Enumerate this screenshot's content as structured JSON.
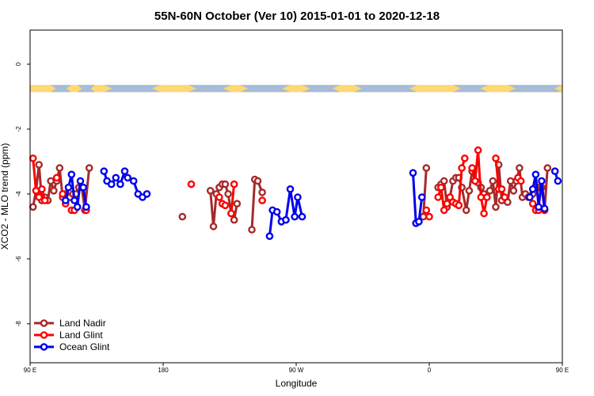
{
  "chart_data": {
    "type": "line",
    "title": "55N-60N October (Ver 10)   2015-01-01 to 2020-12-18",
    "xlabel": "Longitude",
    "ylabel": "XCO2 - MLO trend (ppm)",
    "xlim": [
      90,
      450
    ],
    "ylim": [
      -9.2,
      1.05
    ],
    "x_ticks": [
      {
        "value": 90,
        "label": "90 E"
      },
      {
        "value": 180,
        "label": "180"
      },
      {
        "value": 270,
        "label": "90 W"
      },
      {
        "value": 360,
        "label": "0"
      },
      {
        "value": 450,
        "label": "90 E"
      },
      {
        "value": 540,
        "label": "180"
      }
    ],
    "y_ticks": [
      {
        "value": 0,
        "label": "0"
      },
      {
        "value": -2,
        "label": "-2"
      },
      {
        "value": -4,
        "label": "-4"
      },
      {
        "value": -6,
        "label": "-6"
      },
      {
        "value": -8,
        "label": "-8"
      }
    ],
    "land_ocean_band": {
      "y_top": -0.64,
      "y_bottom": -0.86,
      "land_color": "#ffd873",
      "ocean_color": "#a7bcd9"
    },
    "legend": {
      "position": "bottom-left"
    },
    "series": [
      {
        "name": "Land Nadir",
        "color": "#a52a2a",
        "segments": [
          [
            [
              92,
              -4.4
            ],
            [
              94,
              -3.9
            ],
            [
              96,
              -3.1
            ],
            [
              98,
              -4.2
            ],
            [
              100,
              -4.1
            ],
            [
              102,
              -4.2
            ],
            [
              104,
              -3.6
            ],
            [
              106,
              -3.9
            ],
            [
              108,
              -3.6
            ],
            [
              110,
              -3.2
            ],
            [
              112,
              -4.1
            ],
            [
              114,
              -4.0
            ],
            [
              117,
              -4.1
            ],
            [
              119,
              -4.0
            ],
            [
              121,
              -4.0
            ],
            [
              123,
              -3.8
            ],
            [
              125,
              -3.8
            ],
            [
              127,
              -4.5
            ],
            [
              130,
              -3.2
            ]
          ],
          [
            [
              193,
              -4.7
            ]
          ],
          [
            [
              212,
              -3.9
            ],
            [
              214,
              -5.0
            ],
            [
              216,
              -4.0
            ],
            [
              218,
              -3.8
            ],
            [
              220,
              -3.7
            ],
            [
              222,
              -3.7
            ],
            [
              224,
              -4.0
            ],
            [
              226,
              -4.6
            ],
            [
              228,
              -4.8
            ],
            [
              230,
              -4.3
            ]
          ],
          [
            [
              240,
              -5.1
            ],
            [
              242,
              -3.55
            ],
            [
              244,
              -3.6
            ],
            [
              247,
              -3.95
            ]
          ],
          [
            [
              356,
              -4.7
            ],
            [
              358,
              -3.2
            ]
          ],
          [
            [
              366,
              -3.8
            ],
            [
              368,
              -3.7
            ],
            [
              370,
              -3.6
            ],
            [
              372,
              -4.4
            ],
            [
              374,
              -4.1
            ],
            [
              376,
              -3.6
            ],
            [
              378,
              -3.5
            ],
            [
              380,
              -3.5
            ],
            [
              382,
              -3.8
            ],
            [
              385,
              -4.5
            ],
            [
              387,
              -3.9
            ],
            [
              389,
              -3.3
            ],
            [
              391,
              -3.6
            ],
            [
              393,
              -3.65
            ],
            [
              395,
              -3.8
            ],
            [
              397,
              -4.0
            ],
            [
              399,
              -4.1
            ],
            [
              401,
              -3.9
            ],
            [
              403,
              -3.6
            ],
            [
              405,
              -4.4
            ],
            [
              407,
              -3.1
            ],
            [
              409,
              -4.2
            ],
            [
              411,
              -4.1
            ],
            [
              413,
              -4.25
            ],
            [
              415,
              -3.6
            ],
            [
              417,
              -3.9
            ],
            [
              419,
              -3.6
            ],
            [
              421,
              -3.2
            ],
            [
              423,
              -4.1
            ],
            [
              425,
              -4.0
            ],
            [
              427,
              -4.1
            ],
            [
              430,
              -4.0
            ],
            [
              432,
              -3.8
            ],
            [
              434,
              -3.8
            ],
            [
              436,
              -3.8
            ],
            [
              438,
              -4.5
            ],
            [
              440,
              -3.2
            ]
          ]
        ]
      },
      {
        "name": "Land Glint",
        "color": "#ff0000",
        "segments": [
          [
            [
              92,
              -2.9
            ],
            [
              94,
              -3.9
            ],
            [
              96,
              -4.1
            ],
            [
              98,
              -3.85
            ],
            [
              100,
              -4.2
            ]
          ],
          [
            [
              108,
              -3.5
            ]
          ],
          [
            [
              112,
              -4.0
            ],
            [
              114,
              -4.3
            ]
          ],
          [
            [
              118,
              -4.5
            ],
            [
              120,
              -4.5
            ]
          ],
          [
            [
              128,
              -4.5
            ]
          ],
          [
            [
              199,
              -3.7
            ]
          ],
          [
            [
              218,
              -4.1
            ],
            [
              220,
              -4.3
            ],
            [
              222,
              -4.35
            ]
          ],
          [
            [
              226,
              -4.6
            ],
            [
              228,
              -3.7
            ]
          ],
          [
            [
              247,
              -4.2
            ]
          ],
          [
            [
              358,
              -4.5
            ],
            [
              360,
              -4.7
            ]
          ],
          [
            [
              366,
              -4.1
            ],
            [
              368,
              -3.8
            ],
            [
              370,
              -4.5
            ],
            [
              372,
              -4.3
            ],
            [
              374,
              -4.1
            ],
            [
              376,
              -4.25
            ]
          ],
          [
            [
              378,
              -4.3
            ],
            [
              380,
              -4.35
            ],
            [
              382,
              -3.2
            ],
            [
              384,
              -2.9
            ]
          ],
          [
            [
              389,
              -3.2
            ],
            [
              391,
              -3.6
            ],
            [
              393,
              -2.65
            ],
            [
              395,
              -4.1
            ],
            [
              397,
              -4.6
            ],
            [
              399,
              -4.1
            ]
          ],
          [
            [
              405,
              -2.9
            ],
            [
              407,
              -3.85
            ],
            [
              409,
              -3.85
            ],
            [
              411,
              -4.1
            ]
          ],
          [
            [
              420,
              -3.5
            ],
            [
              422,
              -3.6
            ]
          ],
          [
            [
              430,
              -4.3
            ],
            [
              432,
              -4.5
            ],
            [
              434,
              -4.5
            ]
          ],
          [
            [
              438,
              -4.5
            ]
          ]
        ]
      },
      {
        "name": "Ocean Glint",
        "color": "#0000ee",
        "segments": [
          [
            [
              114,
              -4.2
            ],
            [
              116,
              -3.8
            ],
            [
              118,
              -3.4
            ],
            [
              120,
              -4.2
            ],
            [
              122,
              -4.4
            ],
            [
              124,
              -3.6
            ],
            [
              126,
              -3.8
            ],
            [
              128,
              -4.4
            ]
          ],
          [
            [
              140,
              -3.3
            ],
            [
              142,
              -3.6
            ],
            [
              145,
              -3.7
            ],
            [
              148,
              -3.5
            ],
            [
              151,
              -3.7
            ],
            [
              154,
              -3.3
            ],
            [
              156,
              -3.5
            ],
            [
              160,
              -3.6
            ],
            [
              163,
              -4.0
            ],
            [
              166,
              -4.1
            ],
            [
              169,
              -4.0
            ]
          ],
          [
            [
              252,
              -5.3
            ],
            [
              254,
              -4.5
            ],
            [
              257,
              -4.55
            ],
            [
              260,
              -4.85
            ],
            [
              263,
              -4.8
            ],
            [
              266,
              -3.85
            ],
            [
              269,
              -4.7
            ],
            [
              271,
              -4.1
            ],
            [
              274,
              -4.7
            ]
          ],
          [
            [
              349,
              -3.35
            ],
            [
              351,
              -4.9
            ],
            [
              353,
              -4.85
            ],
            [
              355,
              -4.1
            ]
          ],
          [
            [
              428,
              -4.1
            ],
            [
              430,
              -3.85
            ],
            [
              432,
              -3.4
            ],
            [
              434,
              -4.4
            ],
            [
              436,
              -3.6
            ],
            [
              438,
              -4.45
            ]
          ],
          [
            [
              445,
              -3.3
            ],
            [
              447,
              -3.6
            ]
          ]
        ]
      }
    ]
  }
}
